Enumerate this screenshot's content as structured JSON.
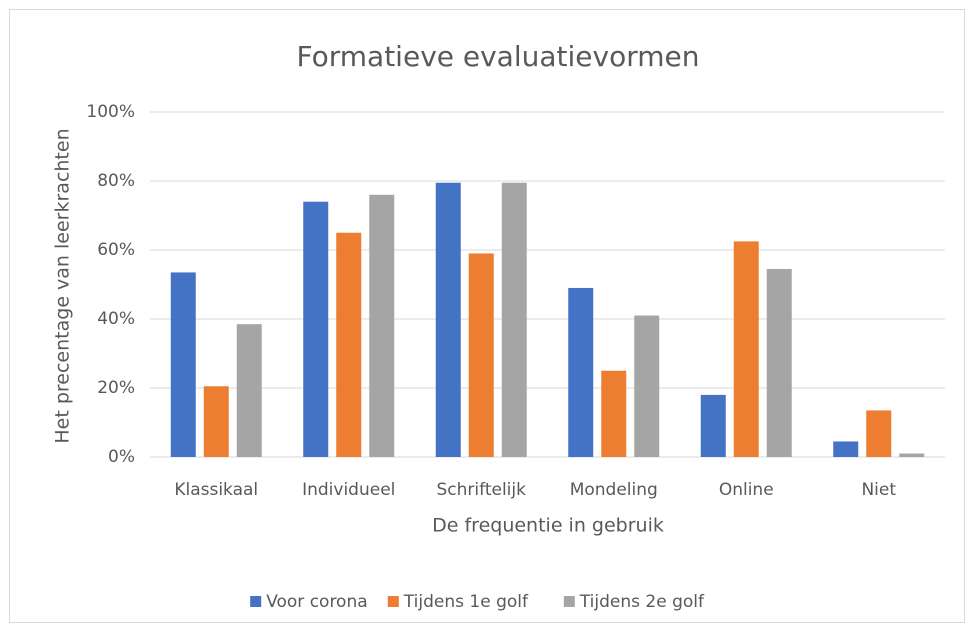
{
  "chart_data": {
    "type": "bar",
    "title": "Formatieve evaluatievormen",
    "x_label": "De frequentie in gebruik",
    "y_label": "Het precentage van leerkrachten",
    "categories": [
      "Klassikaal",
      "Individueel",
      "Schriftelijk",
      "Mondeling",
      "Online",
      "Niet"
    ],
    "series": [
      {
        "name": "Voor corona",
        "color": "#4472c4",
        "values": [
          53.5,
          74,
          79.5,
          49,
          18,
          4.5
        ]
      },
      {
        "name": "Tijdens 1e golf",
        "color": "#ed7d31",
        "values": [
          20.5,
          65,
          59,
          25,
          62.5,
          13.5
        ]
      },
      {
        "name": "Tijdens 2e golf",
        "color": "#a5a5a5",
        "values": [
          38.5,
          76,
          79.5,
          41,
          54.5,
          1
        ]
      }
    ],
    "ylim": [
      0,
      100
    ],
    "yticks": [
      {
        "value": 0,
        "label": "0%"
      },
      {
        "value": 20,
        "label": "20%"
      },
      {
        "value": 40,
        "label": "40%"
      },
      {
        "value": 60,
        "label": "60%"
      },
      {
        "value": 80,
        "label": "80%"
      },
      {
        "value": 100,
        "label": "100%"
      }
    ],
    "grid": true,
    "legend": "bottom"
  }
}
